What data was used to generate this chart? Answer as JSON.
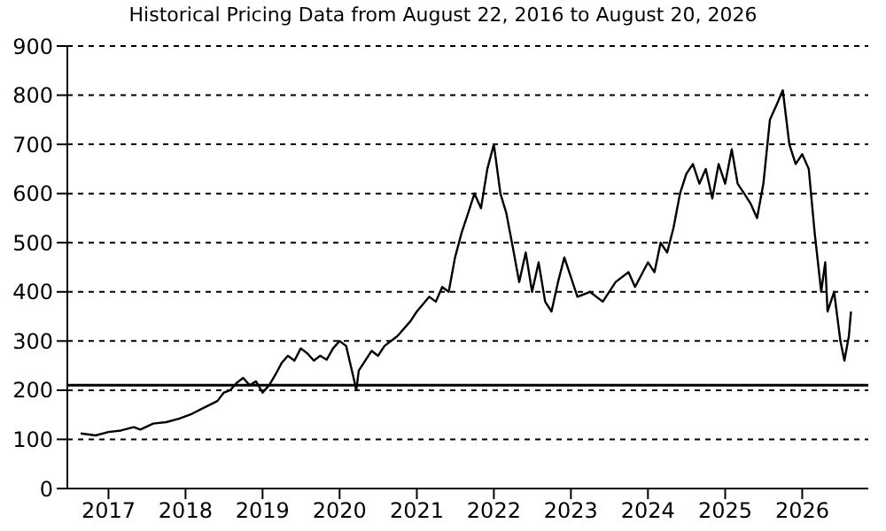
{
  "chart_data": {
    "type": "line",
    "title": "Historical Pricing Data from August 22, 2016 to August 20, 2026",
    "x": [
      "2016-08-22",
      "2016-11",
      "2017-01",
      "2017-03",
      "2017-05",
      "2017-06",
      "2017-08",
      "2017-10",
      "2017-12",
      "2018-02",
      "2018-04",
      "2018-06",
      "2018-07",
      "2018-08",
      "2018-09",
      "2018-10",
      "2018-11",
      "2018-12",
      "2019-01",
      "2019-02",
      "2019-03",
      "2019-04",
      "2019-05",
      "2019-06",
      "2019-07",
      "2019-08",
      "2019-09",
      "2019-10",
      "2019-11",
      "2019-12",
      "2020-01",
      "2020-02",
      "2020-03-10",
      "2020-03-20",
      "2020-04",
      "2020-05",
      "2020-06",
      "2020-07",
      "2020-08",
      "2020-10",
      "2020-12",
      "2021-01",
      "2021-03",
      "2021-04",
      "2021-05",
      "2021-06",
      "2021-07",
      "2021-08",
      "2021-09",
      "2021-10",
      "2021-11",
      "2021-12",
      "2022-01",
      "2022-02",
      "2022-03",
      "2022-04",
      "2022-05",
      "2022-06",
      "2022-07",
      "2022-08",
      "2022-09",
      "2022-10",
      "2022-11",
      "2022-12",
      "2023-01",
      "2023-02",
      "2023-04",
      "2023-06",
      "2023-08",
      "2023-10",
      "2023-11",
      "2024-01",
      "2024-02",
      "2024-03",
      "2024-04",
      "2024-05",
      "2024-06",
      "2024-07",
      "2024-08",
      "2024-09",
      "2024-10",
      "2024-11",
      "2024-12",
      "2025-01",
      "2025-02",
      "2025-03",
      "2025-04",
      "2025-05",
      "2025-06",
      "2025-07",
      "2025-08",
      "2025-09",
      "2025-10",
      "2025-11",
      "2025-12",
      "2026-01",
      "2026-02",
      "2026-03",
      "2026-04",
      "2026-04-20",
      "2026-05",
      "2026-06",
      "2026-07",
      "2026-07-20",
      "2026-08-10",
      "2026-08-20"
    ],
    "series": [
      {
        "color": "#000000",
        "values": [
          112,
          108,
          115,
          118,
          125,
          120,
          132,
          135,
          142,
          152,
          165,
          178,
          195,
          200,
          215,
          225,
          210,
          218,
          195,
          210,
          230,
          255,
          270,
          260,
          285,
          275,
          260,
          270,
          262,
          285,
          300,
          290,
          220,
          200,
          240,
          260,
          280,
          270,
          290,
          310,
          340,
          360,
          390,
          380,
          410,
          400,
          470,
          520,
          560,
          600,
          570,
          650,
          700,
          600,
          560,
          490,
          420,
          480,
          400,
          460,
          380,
          360,
          420,
          470,
          430,
          390,
          400,
          380,
          420,
          440,
          410,
          460,
          440,
          500,
          480,
          530,
          600,
          640,
          660,
          620,
          650,
          590,
          660,
          620,
          690,
          620,
          600,
          580,
          550,
          620,
          750,
          780,
          810,
          700,
          660,
          680,
          650,
          520,
          400,
          460,
          360,
          400,
          300,
          260,
          310,
          360
        ]
      }
    ],
    "xlim": [
      "2016-06-20",
      "2026-11-10"
    ],
    "xticks": [
      "2017",
      "2018",
      "2019",
      "2020",
      "2021",
      "2022",
      "2023",
      "2024",
      "2025",
      "2026"
    ],
    "ylim": [
      0,
      900
    ],
    "yticks": [
      0,
      100,
      200,
      300,
      400,
      500,
      600,
      700,
      800,
      900
    ],
    "grid": "y",
    "legend": false,
    "marker": "none",
    "line_style": "solid",
    "ref_lines": [
      {
        "axis": "y",
        "value": 210,
        "color": "#000000"
      }
    ]
  }
}
